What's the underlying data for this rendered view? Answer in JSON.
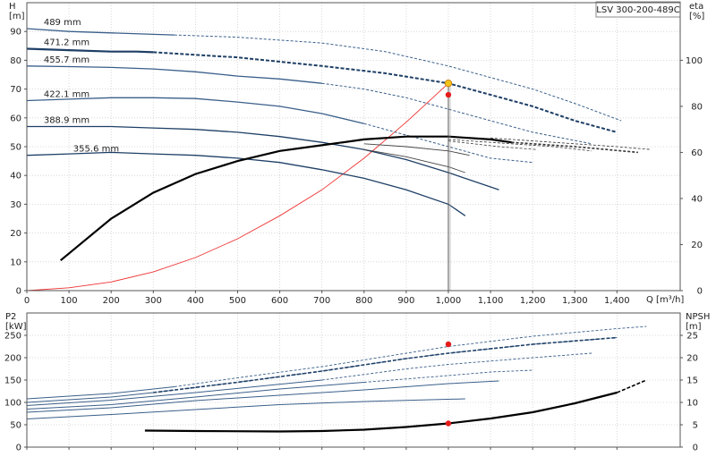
{
  "chart_data": [
    {
      "type": "line",
      "title": "LSV 300-200-489C",
      "xlabel": "Q [m³/h]",
      "ylabel": "H\n[m]",
      "y2label": "eta\n[%]",
      "xlim": [
        0,
        1550
      ],
      "ylim": [
        0,
        100
      ],
      "y2lim": [
        0,
        125
      ],
      "xticks": [
        0,
        100,
        200,
        300,
        400,
        500,
        600,
        700,
        800,
        900,
        1000,
        1100,
        1200,
        1300,
        1400
      ],
      "xtick_labels": [
        "0",
        "100",
        "200",
        "300",
        "400",
        "500",
        "600",
        "700",
        "800",
        "900",
        "1,000",
        "1,100",
        "1,200",
        "1,300",
        "1,400"
      ],
      "yticks": [
        0,
        10,
        20,
        30,
        40,
        50,
        60,
        70,
        80,
        90
      ],
      "y2ticks": [
        0,
        20,
        40,
        60,
        80,
        100
      ],
      "grid": true,
      "head_curves": [
        {
          "name": "489 mm",
          "color": "#3a5f8a",
          "solid": [
            [
              0,
              91
            ],
            [
              100,
              90
            ],
            [
              200,
              89.5
            ],
            [
              300,
              89
            ],
            [
              350,
              88.8
            ]
          ],
          "dashed": [
            [
              350,
              88.8
            ],
            [
              500,
              88
            ],
            [
              700,
              86
            ],
            [
              850,
              83
            ],
            [
              1000,
              78
            ],
            [
              1100,
              74
            ],
            [
              1200,
              70
            ],
            [
              1300,
              65
            ],
            [
              1410,
              59
            ]
          ]
        },
        {
          "name": "471.2 mm",
          "color": "#1e3f66",
          "thick": true,
          "solid": [
            [
              0,
              84
            ],
            [
              100,
              83.5
            ],
            [
              200,
              83
            ],
            [
              260,
              83
            ],
            [
              300,
              82.8
            ]
          ],
          "dashed": [
            [
              300,
              82.8
            ],
            [
              500,
              81
            ],
            [
              700,
              78
            ],
            [
              850,
              75.5
            ],
            [
              1000,
              72
            ],
            [
              1100,
              68
            ],
            [
              1200,
              64
            ],
            [
              1300,
              59
            ],
            [
              1400,
              55
            ]
          ]
        },
        {
          "name": "455.7 mm",
          "color": "#3a5f8a",
          "solid": [
            [
              0,
              78
            ],
            [
              100,
              77.8
            ],
            [
              200,
              77.5
            ],
            [
              300,
              77
            ],
            [
              400,
              76
            ],
            [
              500,
              74.5
            ],
            [
              600,
              73.5
            ],
            [
              700,
              72
            ]
          ],
          "dashed": [
            [
              700,
              72
            ],
            [
              800,
              70
            ],
            [
              900,
              67
            ],
            [
              1000,
              63
            ],
            [
              1100,
              59
            ],
            [
              1200,
              55
            ],
            [
              1340,
              51
            ]
          ]
        },
        {
          "name": "422.1 mm",
          "color": "#3a5f8a",
          "solid": [
            [
              0,
              66
            ],
            [
              100,
              66.5
            ],
            [
              200,
              67
            ],
            [
              300,
              67
            ],
            [
              400,
              66.7
            ],
            [
              500,
              65.5
            ],
            [
              600,
              64
            ],
            [
              700,
              61.5
            ],
            [
              800,
              58
            ]
          ],
          "dashed": [
            [
              800,
              58
            ],
            [
              900,
              54
            ],
            [
              1000,
              50
            ],
            [
              1100,
              46
            ],
            [
              1200,
              44.5
            ]
          ]
        },
        {
          "name": "388.9 mm",
          "color": "#1e3f66",
          "solid": [
            [
              0,
              57
            ],
            [
              100,
              57
            ],
            [
              200,
              57
            ],
            [
              300,
              56.5
            ],
            [
              400,
              56
            ],
            [
              500,
              55
            ],
            [
              600,
              53.5
            ],
            [
              700,
              51.5
            ],
            [
              800,
              49
            ],
            [
              900,
              45.5
            ],
            [
              1000,
              41
            ],
            [
              1120,
              35
            ]
          ],
          "dashed": []
        },
        {
          "name": "355.6 mm",
          "color": "#1e3f66",
          "solid": [
            [
              0,
              47
            ],
            [
              100,
              47.5
            ],
            [
              200,
              48
            ],
            [
              300,
              47.5
            ],
            [
              400,
              47
            ],
            [
              500,
              46
            ],
            [
              600,
              44.5
            ],
            [
              700,
              42
            ],
            [
              800,
              39
            ],
            [
              900,
              35
            ],
            [
              1000,
              30
            ],
            [
              1040,
              26
            ]
          ],
          "dashed": []
        }
      ],
      "eta_curves": [
        {
          "solid": [
            [
              80,
              10.5
            ],
            [
              200,
              25
            ],
            [
              300,
              34
            ],
            [
              400,
              40.5
            ],
            [
              500,
              45
            ],
            [
              600,
              48.5
            ],
            [
              700,
              50.5
            ],
            [
              800,
              52.5
            ],
            [
              900,
              53.5
            ],
            [
              1000,
              53.5
            ],
            [
              1100,
              52.5
            ],
            [
              1150,
              51.5
            ]
          ],
          "dashed": [
            [
              1150,
              51.5
            ],
            [
              1300,
              50
            ],
            [
              1450,
              48
            ]
          ]
        },
        {
          "solid": [],
          "dashed": [
            [
              1100,
              53
            ],
            [
              1250,
              51.5
            ],
            [
              1400,
              50
            ],
            [
              1480,
              49
            ]
          ]
        },
        {
          "solid": [],
          "dashed": [
            [
              1000,
              52.5
            ],
            [
              1150,
              51
            ],
            [
              1250,
              50
            ],
            [
              1340,
              48.5
            ]
          ]
        },
        {
          "solid": [],
          "dashed": [
            [
              1000,
              52
            ],
            [
              1120,
              50
            ],
            [
              1210,
              49
            ]
          ]
        },
        {
          "solid": [
            [
              800,
              51
            ],
            [
              900,
              50
            ],
            [
              1000,
              48.5
            ],
            [
              1050,
              47
            ]
          ],
          "dashed": []
        },
        {
          "solid": [
            [
              800,
              49
            ],
            [
              900,
              46.5
            ],
            [
              1000,
              43
            ],
            [
              1040,
              41
            ]
          ],
          "dashed": []
        }
      ],
      "system_curve": [
        [
          0,
          0
        ],
        [
          100,
          1
        ],
        [
          200,
          3
        ],
        [
          300,
          6.5
        ],
        [
          400,
          11.5
        ],
        [
          500,
          18
        ],
        [
          600,
          26
        ],
        [
          700,
          35
        ],
        [
          800,
          46
        ],
        [
          900,
          58.5
        ],
        [
          1000,
          72
        ]
      ],
      "operating_point": {
        "x": 1000,
        "y": 72
      },
      "eta_point": {
        "x": 1000,
        "eta": 85
      }
    },
    {
      "type": "line",
      "ylabel": "P2\n[kW]",
      "y2label": "NPSH\n[m]",
      "xlim": [
        0,
        1550
      ],
      "ylim": [
        0,
        300
      ],
      "y2lim": [
        0,
        30
      ],
      "yticks": [
        0,
        50,
        100,
        150,
        200,
        250
      ],
      "y2ticks": [
        0,
        5,
        10,
        15,
        20,
        25
      ],
      "grid": true,
      "power_curves": [
        {
          "name": "489 mm",
          "solid": [
            [
              0,
              108
            ],
            [
              200,
              120
            ],
            [
              350,
              135
            ]
          ],
          "dashed": [
            [
              350,
              135
            ],
            [
              500,
              155
            ],
            [
              700,
              180
            ],
            [
              900,
              210
            ],
            [
              1000,
              225
            ],
            [
              1200,
              248
            ],
            [
              1400,
              265
            ],
            [
              1470,
              270
            ]
          ]
        },
        {
          "name": "471.2 mm",
          "solid": [
            [
              0,
              100
            ],
            [
              200,
              112
            ],
            [
              300,
              122
            ]
          ],
          "dashed": [
            [
              300,
              122
            ],
            [
              500,
              145
            ],
            [
              700,
              170
            ],
            [
              900,
              198
            ],
            [
              1000,
              210
            ],
            [
              1200,
              230
            ],
            [
              1400,
              245
            ]
          ]
        },
        {
          "name": "455.7 mm",
          "solid": [
            [
              0,
              93
            ],
            [
              200,
              105
            ],
            [
              400,
              122
            ],
            [
              700,
              150
            ]
          ],
          "dashed": [
            [
              700,
              150
            ],
            [
              900,
              175
            ],
            [
              1000,
              185
            ],
            [
              1200,
              200
            ],
            [
              1340,
              210
            ]
          ]
        },
        {
          "name": "422.1 mm",
          "solid": [
            [
              0,
              85
            ],
            [
              200,
              95
            ],
            [
              400,
              112
            ],
            [
              600,
              130
            ],
            [
              800,
              145
            ]
          ],
          "dashed": [
            [
              800,
              145
            ],
            [
              1000,
              160
            ],
            [
              1100,
              168
            ],
            [
              1200,
              172
            ]
          ]
        },
        {
          "name": "388.9 mm",
          "solid": [
            [
              0,
              78
            ],
            [
              200,
              88
            ],
            [
              400,
              104
            ],
            [
              600,
              116
            ],
            [
              800,
              128
            ],
            [
              1000,
              142
            ],
            [
              1120,
              148
            ]
          ],
          "dashed": []
        },
        {
          "name": "355.6 mm",
          "solid": [
            [
              0,
              63
            ],
            [
              200,
              73
            ],
            [
              400,
              84
            ],
            [
              600,
              95
            ],
            [
              800,
              102
            ],
            [
              1040,
              108
            ]
          ],
          "dashed": []
        }
      ],
      "npsh_curve": {
        "solid": [
          [
            280,
            3.7
          ],
          [
            400,
            3.6
          ],
          [
            600,
            3.5
          ],
          [
            700,
            3.6
          ],
          [
            800,
            3.9
          ],
          [
            900,
            4.5
          ],
          [
            1000,
            5.3
          ],
          [
            1100,
            6.4
          ],
          [
            1200,
            7.8
          ],
          [
            1300,
            9.8
          ],
          [
            1400,
            12.2
          ]
        ],
        "dashed": [
          [
            1400,
            12.2
          ],
          [
            1470,
            15
          ]
        ]
      },
      "power_point": {
        "x": 1000,
        "y": 230
      },
      "npsh_point": {
        "x": 1000,
        "npsh": 5.3
      }
    }
  ]
}
